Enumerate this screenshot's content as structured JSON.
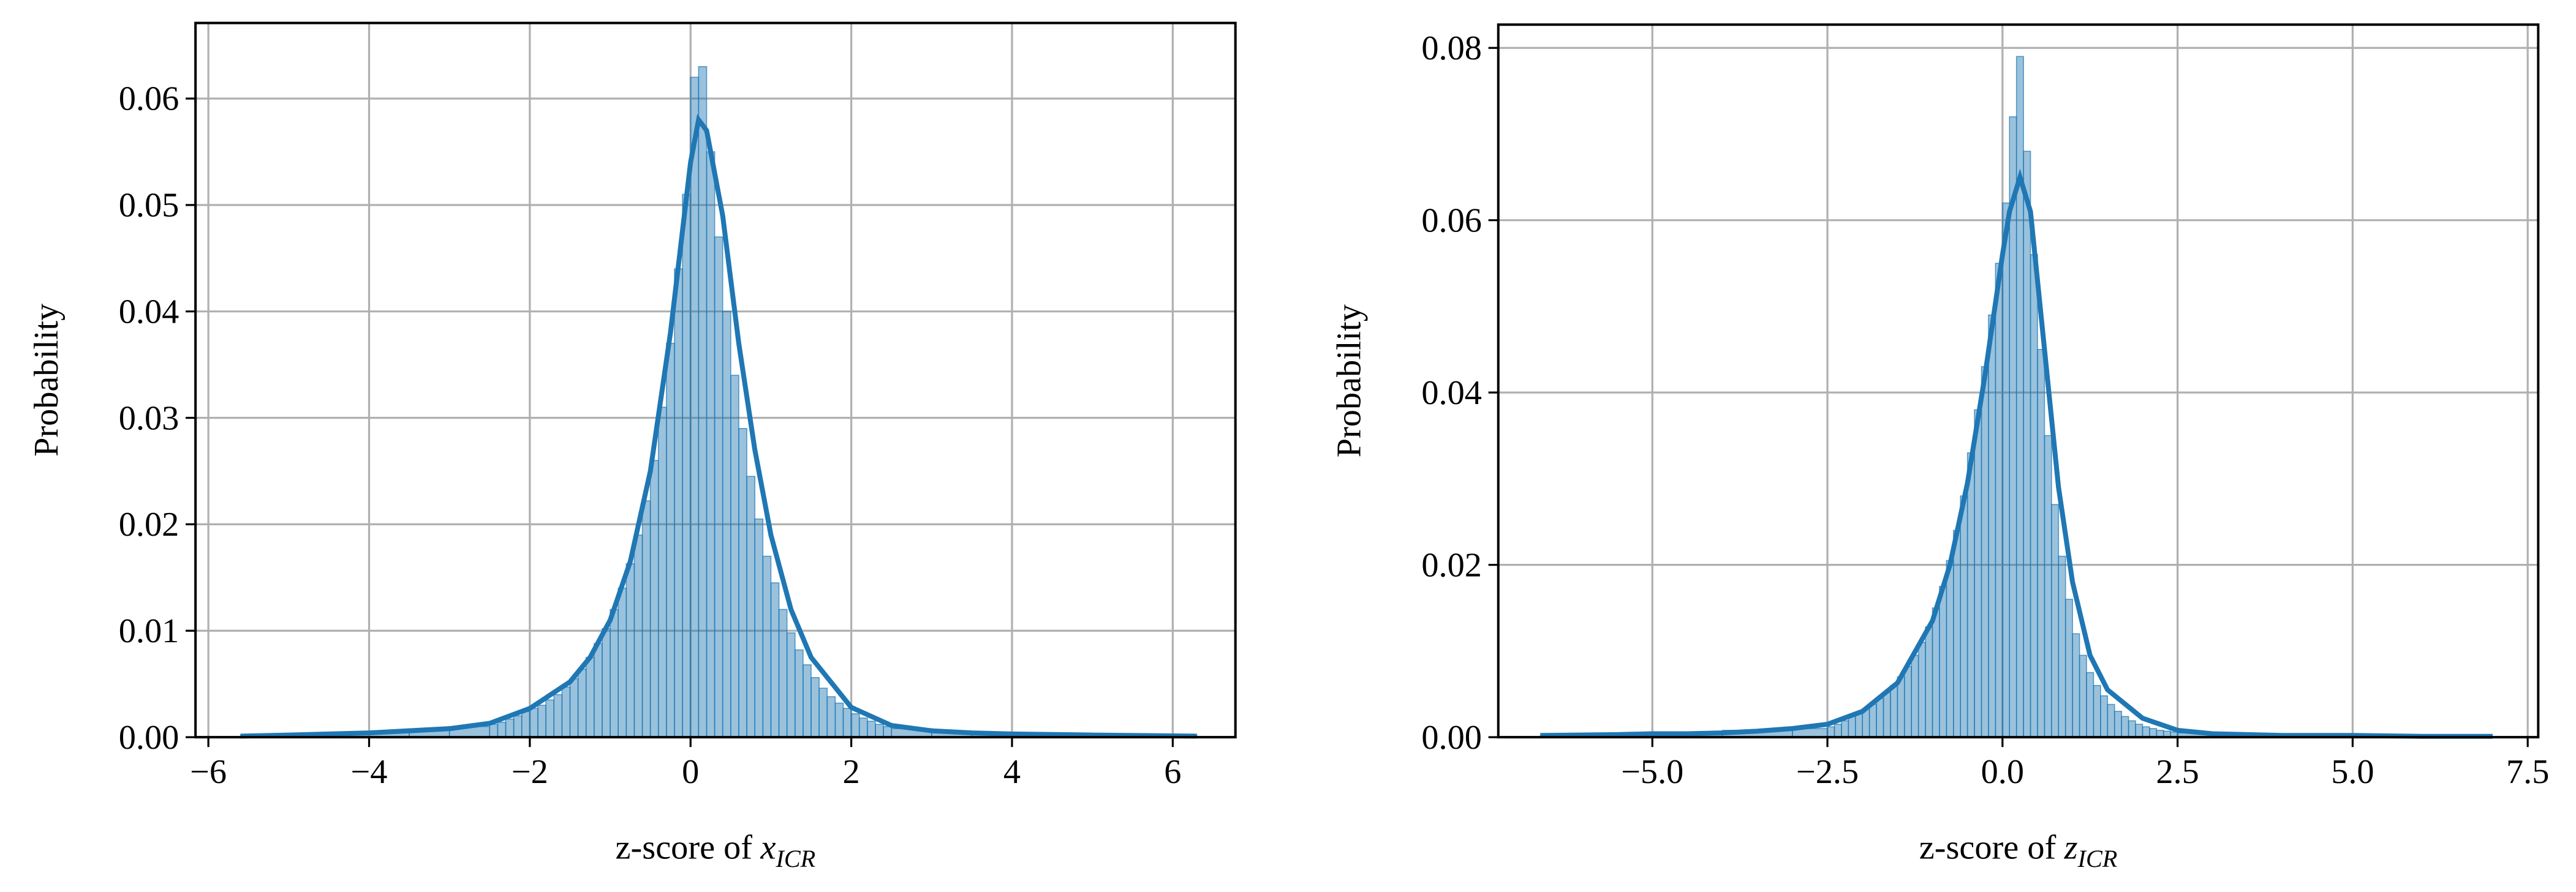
{
  "chart_data": [
    {
      "type": "histogram",
      "ylabel": "Probability",
      "xlabel": {
        "text": "z-score of",
        "var": "x",
        "sub": "ICR"
      },
      "color": "#1f77b4",
      "grid": true,
      "xlim": [
        -6.16,
        6.78
      ],
      "ylim": [
        0,
        0.0671
      ],
      "xticks": [
        {
          "value": -6,
          "label": "−6"
        },
        {
          "value": -4,
          "label": "−4"
        },
        {
          "value": -2,
          "label": "−2"
        },
        0,
        2,
        4,
        6
      ],
      "yticks": [
        {
          "value": 0,
          "label": "0.00"
        },
        0.01,
        0.02,
        0.03,
        0.04,
        0.05,
        0.06
      ],
      "bins": [
        -5.6,
        -4.5,
        -3.5,
        -3,
        -2.5,
        -2.4,
        -2.3,
        -2.2,
        -2.1,
        -2,
        -1.9,
        -1.8,
        -1.7,
        -1.6,
        -1.5,
        -1.4,
        -1.3,
        -1.2,
        -1.1,
        -1,
        -0.9,
        -0.8,
        -0.7,
        -0.6,
        -0.5,
        -0.4,
        -0.3,
        -0.2,
        -0.1,
        0,
        0.1,
        0.2,
        0.3,
        0.4,
        0.5,
        0.6,
        0.7,
        0.8,
        0.9,
        1,
        1.1,
        1.2,
        1.3,
        1.4,
        1.5,
        1.6,
        1.7,
        1.8,
        1.9,
        2,
        2.1,
        2.2,
        2.3,
        2.4,
        2.5,
        3,
        3.5,
        4.5,
        6.3
      ],
      "values": [
        0.0002,
        0.0004,
        0.0007,
        0.001,
        0.0012,
        0.0014,
        0.0017,
        0.002,
        0.0024,
        0.0027,
        0.003,
        0.0035,
        0.004,
        0.0047,
        0.0055,
        0.0064,
        0.0075,
        0.0088,
        0.0102,
        0.012,
        0.014,
        0.0163,
        0.019,
        0.0222,
        0.026,
        0.031,
        0.037,
        0.044,
        0.051,
        0.062,
        0.063,
        0.055,
        0.047,
        0.04,
        0.034,
        0.029,
        0.0245,
        0.0205,
        0.017,
        0.0145,
        0.012,
        0.0098,
        0.0082,
        0.0068,
        0.0056,
        0.0046,
        0.0038,
        0.0032,
        0.0027,
        0.0022,
        0.0018,
        0.0015,
        0.0012,
        0.001,
        0.0008,
        0.0005,
        0.0003,
        0.0002
      ],
      "kde": {
        "x": [
          -5.6,
          -5,
          -4.5,
          -4,
          -3.5,
          -3,
          -2.5,
          -2,
          -1.5,
          -1.25,
          -1,
          -0.75,
          -0.5,
          -0.25,
          0,
          0.1,
          0.2,
          0.4,
          0.6,
          0.8,
          1,
          1.25,
          1.5,
          2,
          2.5,
          3,
          3.5,
          4,
          5,
          6.3
        ],
        "values": [
          0.0001,
          0.0002,
          0.0003,
          0.0004,
          0.0006,
          0.0008,
          0.0013,
          0.0027,
          0.0052,
          0.0075,
          0.011,
          0.0165,
          0.025,
          0.038,
          0.054,
          0.058,
          0.057,
          0.049,
          0.037,
          0.027,
          0.019,
          0.012,
          0.0075,
          0.0028,
          0.0011,
          0.0006,
          0.0004,
          0.0003,
          0.0002,
          0.0001
        ]
      }
    },
    {
      "type": "histogram",
      "ylabel": "Probability",
      "xlabel": {
        "text": "z-score of",
        "var": "z",
        "sub": "ICR"
      },
      "color": "#1f77b4",
      "grid": true,
      "xlim": [
        -7.2,
        7.65
      ],
      "ylim": [
        0,
        0.0827
      ],
      "xticks": [
        {
          "value": -5,
          "label": "−5.0"
        },
        {
          "value": -2.5,
          "label": "−2.5"
        },
        {
          "value": 0,
          "label": "0.0"
        },
        2.5,
        {
          "value": 5,
          "label": "5.0"
        },
        7.5
      ],
      "yticks": [
        {
          "value": 0,
          "label": "0.00"
        },
        0.02,
        0.04,
        0.06,
        0.08
      ],
      "bins": [
        -6.6,
        -5,
        -4,
        -3,
        -2.5,
        -2.4,
        -2.3,
        -2.2,
        -2.1,
        -2,
        -1.9,
        -1.8,
        -1.7,
        -1.6,
        -1.5,
        -1.4,
        -1.3,
        -1.2,
        -1.1,
        -1,
        -0.9,
        -0.8,
        -0.7,
        -0.6,
        -0.5,
        -0.4,
        -0.3,
        -0.2,
        -0.1,
        0,
        0.1,
        0.2,
        0.3,
        0.4,
        0.5,
        0.6,
        0.7,
        0.8,
        0.9,
        1,
        1.1,
        1.2,
        1.3,
        1.4,
        1.5,
        1.6,
        1.7,
        1.8,
        1.9,
        2,
        2.1,
        2.2,
        2.3,
        2.4,
        2.5,
        3,
        4,
        5,
        7
      ],
      "values": [
        0.0002,
        0.0004,
        0.0008,
        0.001,
        0.0012,
        0.0015,
        0.0019,
        0.0024,
        0.0028,
        0.0033,
        0.0038,
        0.0045,
        0.0052,
        0.006,
        0.007,
        0.0082,
        0.0095,
        0.011,
        0.0128,
        0.015,
        0.0175,
        0.0205,
        0.024,
        0.028,
        0.033,
        0.038,
        0.043,
        0.049,
        0.055,
        0.062,
        0.072,
        0.079,
        0.068,
        0.056,
        0.045,
        0.035,
        0.027,
        0.021,
        0.016,
        0.012,
        0.0095,
        0.0075,
        0.006,
        0.0048,
        0.0038,
        0.003,
        0.0024,
        0.0019,
        0.0015,
        0.0012,
        0.001,
        0.0008,
        0.0007,
        0.0006,
        0.0005,
        0.0003,
        0.0002,
        0.0001
      ],
      "kde": {
        "x": [
          -6.6,
          -5.5,
          -5,
          -4.5,
          -4,
          -3.5,
          -3,
          -2.5,
          -2,
          -1.5,
          -1,
          -0.75,
          -0.5,
          -0.25,
          0,
          0.1,
          0.25,
          0.4,
          0.6,
          0.8,
          1,
          1.25,
          1.5,
          2,
          2.5,
          3,
          4,
          5,
          6,
          7
        ],
        "values": [
          0.0002,
          0.0003,
          0.0004,
          0.0004,
          0.0005,
          0.0007,
          0.001,
          0.0015,
          0.003,
          0.0063,
          0.0135,
          0.02,
          0.0295,
          0.042,
          0.056,
          0.061,
          0.065,
          0.061,
          0.045,
          0.029,
          0.018,
          0.0095,
          0.0055,
          0.0022,
          0.0008,
          0.0004,
          0.0002,
          0.0002,
          0.0001,
          0.0001
        ]
      }
    }
  ]
}
